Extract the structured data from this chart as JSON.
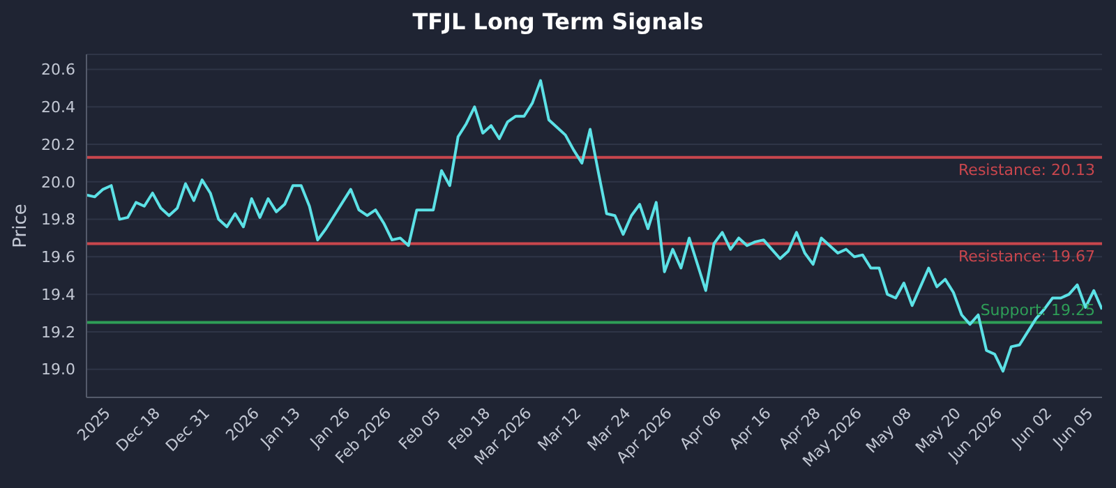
{
  "chart_data": {
    "type": "line",
    "title": "TFJL Long Term Signals",
    "ylabel": "Price",
    "categories": [
      null,
      null,
      null,
      "2025",
      null,
      null,
      null,
      null,
      null,
      "Dec 18",
      null,
      null,
      null,
      null,
      null,
      "Dec 31",
      null,
      null,
      null,
      null,
      null,
      "2026",
      null,
      null,
      null,
      null,
      "Jan 13",
      null,
      null,
      null,
      null,
      null,
      "Jan 26",
      null,
      null,
      null,
      null,
      "Feb 2026",
      null,
      null,
      null,
      null,
      null,
      "Feb 05",
      null,
      null,
      null,
      null,
      null,
      "Feb 18",
      null,
      null,
      null,
      null,
      "Mar 2026",
      null,
      null,
      null,
      null,
      null,
      "Mar 12",
      null,
      null,
      null,
      null,
      null,
      "Mar 24",
      null,
      null,
      null,
      null,
      "Apr 2026",
      null,
      null,
      null,
      null,
      null,
      "Apr 06",
      null,
      null,
      null,
      null,
      null,
      "Apr 16",
      null,
      null,
      null,
      null,
      null,
      "Apr 28",
      null,
      null,
      null,
      null,
      "May 2026",
      null,
      null,
      null,
      null,
      null,
      "May 08",
      null,
      null,
      null,
      null,
      null,
      "May 20",
      null,
      null,
      null,
      null,
      "Jun 2026",
      null,
      null,
      null,
      null,
      null,
      "Jun 02",
      null,
      null,
      null,
      null,
      "Jun 05",
      null
    ],
    "series": [
      {
        "color": "#5ce1e6",
        "values": [
          19.93,
          19.92,
          19.96,
          19.98,
          19.8,
          19.81,
          19.89,
          19.87,
          19.94,
          19.86,
          19.82,
          19.86,
          19.99,
          19.9,
          20.01,
          19.94,
          19.8,
          19.76,
          19.83,
          19.76,
          19.91,
          19.81,
          19.91,
          19.84,
          19.88,
          19.98,
          19.98,
          19.87,
          19.69,
          19.75,
          19.82,
          19.89,
          19.96,
          19.85,
          19.82,
          19.85,
          19.78,
          19.69,
          19.7,
          19.66,
          19.85,
          19.85,
          19.85,
          20.06,
          19.98,
          20.24,
          20.31,
          20.4,
          20.26,
          20.3,
          20.23,
          20.32,
          20.35,
          20.35,
          20.42,
          20.54,
          20.33,
          20.29,
          20.25,
          20.17,
          20.1,
          20.28,
          20.05,
          19.83,
          19.82,
          19.72,
          19.82,
          19.88,
          19.75,
          19.89,
          19.52,
          19.64,
          19.54,
          19.7,
          19.56,
          19.42,
          19.67,
          19.73,
          19.64,
          19.7,
          19.66,
          19.68,
          19.69,
          19.64,
          19.59,
          19.63,
          19.73,
          19.62,
          19.56,
          19.7,
          19.66,
          19.62,
          19.64,
          19.6,
          19.61,
          19.54,
          19.54,
          19.4,
          19.38,
          19.46,
          19.34,
          19.44,
          19.54,
          19.44,
          19.48,
          19.41,
          19.29,
          19.24,
          19.29,
          19.1,
          19.08,
          18.99,
          19.12,
          19.13,
          19.2,
          19.27,
          19.32,
          19.38,
          19.38,
          19.4,
          19.45,
          19.33,
          19.42,
          19.32
        ]
      }
    ],
    "ylim": [
      18.85,
      20.68
    ],
    "yticks": [
      {
        "value": 19,
        "label": "19.0"
      },
      19.2,
      19.4,
      19.6,
      19.8,
      {
        "value": 20,
        "label": "20.0"
      },
      20.2,
      20.4,
      20.6
    ],
    "ref_lines": [
      {
        "axis": "y",
        "value": 20.13,
        "label": "Resistance: 20.13",
        "color": "#c9464d"
      },
      {
        "axis": "y",
        "value": 19.67,
        "label": "Resistance: 19.67",
        "color": "#c9464d"
      },
      {
        "axis": "y",
        "value": 19.25,
        "label": "Support: 19.25",
        "color": "#2e9e57"
      }
    ],
    "grid": "y",
    "legend": false,
    "marker": "none",
    "line_style": "solid"
  }
}
